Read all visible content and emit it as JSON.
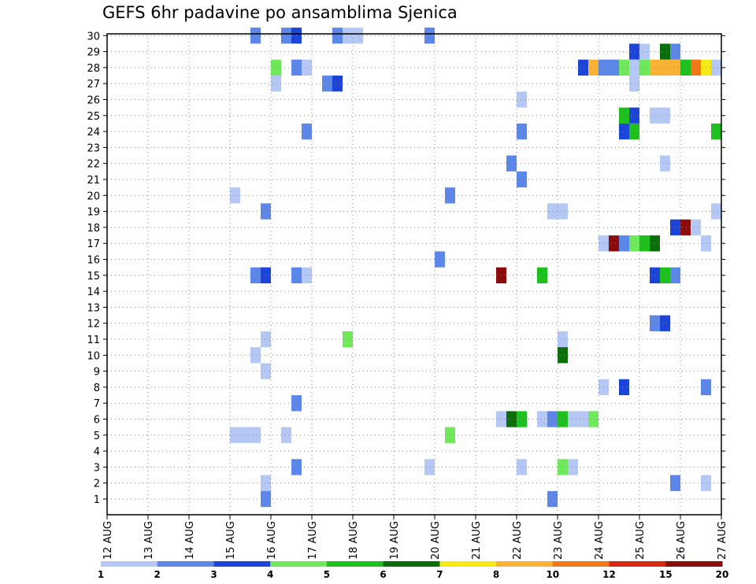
{
  "chart_data": {
    "type": "heatmap",
    "title": "GEFS 6hr padavine po ansamblima Sjenica",
    "xlabel": "",
    "ylabel": "",
    "x_tick_labels": [
      "12 AUG",
      "13 AUG",
      "14 AUG",
      "15 AUG",
      "16 AUG",
      "17 AUG",
      "18 AUG",
      "19 AUG",
      "20 AUG",
      "21 AUG",
      "22 AUG",
      "23 AUG",
      "24 AUG",
      "25 AUG",
      "26 AUG",
      "27 AUG"
    ],
    "y_tick_labels": [
      "1",
      "2",
      "3",
      "4",
      "5",
      "6",
      "7",
      "8",
      "9",
      "10",
      "11",
      "12",
      "13",
      "14",
      "15",
      "16",
      "17",
      "18",
      "19",
      "20",
      "21",
      "22",
      "23",
      "24",
      "25",
      "26",
      "27",
      "28",
      "29",
      "30"
    ],
    "x_range_days": [
      0,
      15
    ],
    "y_range_members": [
      0,
      30
    ],
    "grid": "dotted",
    "legend": {
      "position": "bottom",
      "labels": [
        "1",
        "2",
        "3",
        "4",
        "5",
        "6",
        "7",
        "8",
        "10",
        "12",
        "15",
        "20"
      ],
      "colors": [
        "#b5c8f5",
        "#5c86e8",
        "#1c44d6",
        "#6fe85a",
        "#1ec01e",
        "#0b6e0b",
        "#f5ea14",
        "#f9b233",
        "#f07818",
        "#d62a0e",
        "#8c0c0c"
      ]
    },
    "cells": [
      {
        "t": 3.5,
        "m": 30,
        "v": 2
      },
      {
        "t": 4.25,
        "m": 30,
        "v": 2
      },
      {
        "t": 4.5,
        "m": 30,
        "v": 3
      },
      {
        "t": 5.5,
        "m": 30,
        "v": 2
      },
      {
        "t": 5.75,
        "m": 30,
        "v": 1
      },
      {
        "t": 6.0,
        "m": 30,
        "v": 1
      },
      {
        "t": 7.75,
        "m": 30,
        "v": 2
      },
      {
        "t": 12.75,
        "m": 29,
        "v": 3
      },
      {
        "t": 13.0,
        "m": 29,
        "v": 1
      },
      {
        "t": 13.5,
        "m": 29,
        "v": 6
      },
      {
        "t": 13.75,
        "m": 29,
        "v": 2
      },
      {
        "t": 4.0,
        "m": 28,
        "v": 4
      },
      {
        "t": 4.5,
        "m": 28,
        "v": 2
      },
      {
        "t": 4.75,
        "m": 28,
        "v": 1
      },
      {
        "t": 11.5,
        "m": 28,
        "v": 3
      },
      {
        "t": 11.75,
        "m": 28,
        "v": 8
      },
      {
        "t": 12.0,
        "m": 28,
        "v": 2
      },
      {
        "t": 12.25,
        "m": 28,
        "v": 2
      },
      {
        "t": 12.5,
        "m": 28,
        "v": 4
      },
      {
        "t": 12.75,
        "m": 28,
        "v": 1
      },
      {
        "t": 13.0,
        "m": 28,
        "v": 4
      },
      {
        "t": 13.25,
        "m": 28,
        "v": 8
      },
      {
        "t": 13.5,
        "m": 28,
        "v": 8
      },
      {
        "t": 13.75,
        "m": 28,
        "v": 8
      },
      {
        "t": 14.0,
        "m": 28,
        "v": 5
      },
      {
        "t": 14.25,
        "m": 28,
        "v": 10
      },
      {
        "t": 14.5,
        "m": 28,
        "v": 7
      },
      {
        "t": 14.75,
        "m": 28,
        "v": 1
      },
      {
        "t": 4.0,
        "m": 27,
        "v": 1
      },
      {
        "t": 5.25,
        "m": 27,
        "v": 2
      },
      {
        "t": 5.5,
        "m": 27,
        "v": 3
      },
      {
        "t": 12.75,
        "m": 27,
        "v": 1
      },
      {
        "t": 10.0,
        "m": 26,
        "v": 1
      },
      {
        "t": 12.5,
        "m": 25,
        "v": 5
      },
      {
        "t": 12.75,
        "m": 25,
        "v": 3
      },
      {
        "t": 13.25,
        "m": 25,
        "v": 1
      },
      {
        "t": 13.5,
        "m": 25,
        "v": 1
      },
      {
        "t": 4.75,
        "m": 24,
        "v": 2
      },
      {
        "t": 10.0,
        "m": 24,
        "v": 2
      },
      {
        "t": 12.5,
        "m": 24,
        "v": 3
      },
      {
        "t": 12.75,
        "m": 24,
        "v": 5
      },
      {
        "t": 15.0,
        "m": 24,
        "v": 5
      },
      {
        "t": 9.75,
        "m": 22,
        "v": 2
      },
      {
        "t": 13.5,
        "m": 22,
        "v": 1
      },
      {
        "t": 10.0,
        "m": 21,
        "v": 2
      },
      {
        "t": 3.0,
        "m": 20,
        "v": 1
      },
      {
        "t": 8.25,
        "m": 20,
        "v": 2
      },
      {
        "t": 3.75,
        "m": 19,
        "v": 2
      },
      {
        "t": 10.75,
        "m": 19,
        "v": 1
      },
      {
        "t": 11.0,
        "m": 19,
        "v": 1
      },
      {
        "t": 14.75,
        "m": 19,
        "v": 1
      },
      {
        "t": 13.75,
        "m": 18,
        "v": 3
      },
      {
        "t": 14.0,
        "m": 18,
        "v": 20
      },
      {
        "t": 14.25,
        "m": 18,
        "v": 1
      },
      {
        "t": 12.0,
        "m": 17,
        "v": 1
      },
      {
        "t": 12.25,
        "m": 17,
        "v": 15
      },
      {
        "t": 12.5,
        "m": 17,
        "v": 2
      },
      {
        "t": 12.75,
        "m": 17,
        "v": 4
      },
      {
        "t": 13.0,
        "m": 17,
        "v": 5
      },
      {
        "t": 13.25,
        "m": 17,
        "v": 6
      },
      {
        "t": 14.5,
        "m": 17,
        "v": 1
      },
      {
        "t": 8.0,
        "m": 16,
        "v": 2
      },
      {
        "t": 3.5,
        "m": 15,
        "v": 2
      },
      {
        "t": 3.75,
        "m": 15,
        "v": 3
      },
      {
        "t": 4.5,
        "m": 15,
        "v": 2
      },
      {
        "t": 4.75,
        "m": 15,
        "v": 1
      },
      {
        "t": 9.5,
        "m": 15,
        "v": 15
      },
      {
        "t": 10.5,
        "m": 15,
        "v": 5
      },
      {
        "t": 13.25,
        "m": 15,
        "v": 3
      },
      {
        "t": 13.5,
        "m": 15,
        "v": 5
      },
      {
        "t": 13.75,
        "m": 15,
        "v": 2
      },
      {
        "t": 13.25,
        "m": 12,
        "v": 2
      },
      {
        "t": 13.5,
        "m": 12,
        "v": 3
      },
      {
        "t": 3.75,
        "m": 11,
        "v": 1
      },
      {
        "t": 5.75,
        "m": 11,
        "v": 4
      },
      {
        "t": 11.0,
        "m": 11,
        "v": 1
      },
      {
        "t": 3.5,
        "m": 10,
        "v": 1
      },
      {
        "t": 11.0,
        "m": 10,
        "v": 6
      },
      {
        "t": 3.75,
        "m": 9,
        "v": 1
      },
      {
        "t": 12.0,
        "m": 8,
        "v": 1
      },
      {
        "t": 12.5,
        "m": 8,
        "v": 3
      },
      {
        "t": 14.5,
        "m": 8,
        "v": 2
      },
      {
        "t": 4.5,
        "m": 7,
        "v": 2
      },
      {
        "t": 9.5,
        "m": 6,
        "v": 1
      },
      {
        "t": 9.75,
        "m": 6,
        "v": 6
      },
      {
        "t": 10.0,
        "m": 6,
        "v": 5
      },
      {
        "t": 10.5,
        "m": 6,
        "v": 1
      },
      {
        "t": 10.75,
        "m": 6,
        "v": 2
      },
      {
        "t": 11.0,
        "m": 6,
        "v": 5
      },
      {
        "t": 11.25,
        "m": 6,
        "v": 1
      },
      {
        "t": 11.5,
        "m": 6,
        "v": 1
      },
      {
        "t": 11.75,
        "m": 6,
        "v": 4
      },
      {
        "t": 3.0,
        "m": 5,
        "v": 1
      },
      {
        "t": 3.25,
        "m": 5,
        "v": 1
      },
      {
        "t": 3.5,
        "m": 5,
        "v": 1
      },
      {
        "t": 4.25,
        "m": 5,
        "v": 1
      },
      {
        "t": 8.25,
        "m": 5,
        "v": 4
      },
      {
        "t": 4.5,
        "m": 3,
        "v": 2
      },
      {
        "t": 7.75,
        "m": 3,
        "v": 1
      },
      {
        "t": 10.0,
        "m": 3,
        "v": 1
      },
      {
        "t": 11.0,
        "m": 3,
        "v": 4
      },
      {
        "t": 11.25,
        "m": 3,
        "v": 1
      },
      {
        "t": 3.75,
        "m": 2,
        "v": 1
      },
      {
        "t": 13.75,
        "m": 2,
        "v": 2
      },
      {
        "t": 14.5,
        "m": 2,
        "v": 1
      },
      {
        "t": 3.75,
        "m": 1,
        "v": 2
      },
      {
        "t": 10.75,
        "m": 1,
        "v": 2
      }
    ]
  }
}
